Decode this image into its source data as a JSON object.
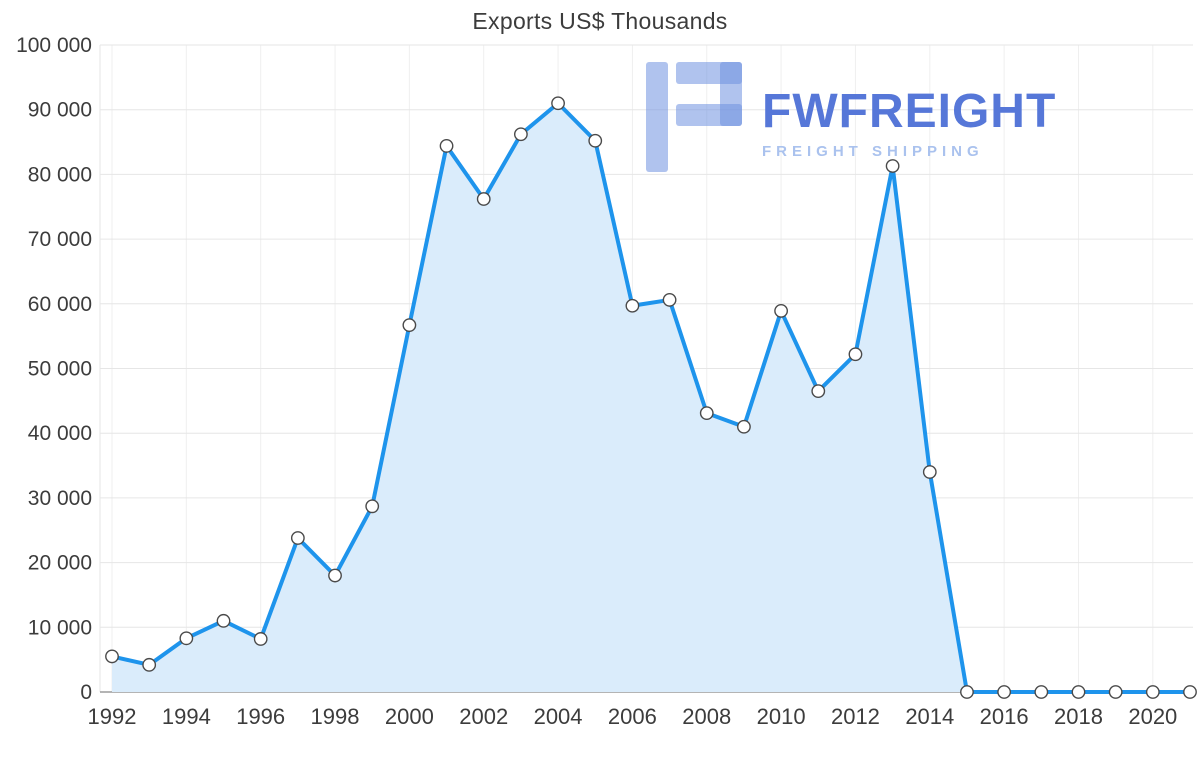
{
  "chart_data": {
    "type": "area",
    "title": "Exports US$ Thousands",
    "xlabel": "",
    "ylabel": "",
    "x": [
      1992,
      1993,
      1994,
      1995,
      1996,
      1997,
      1998,
      1999,
      2000,
      2001,
      2002,
      2003,
      2004,
      2005,
      2006,
      2007,
      2008,
      2009,
      2010,
      2011,
      2012,
      2013,
      2014,
      2015,
      2016,
      2017,
      2018,
      2019,
      2020,
      2021
    ],
    "values": [
      5500,
      4200,
      8300,
      11000,
      8200,
      23800,
      18000,
      28700,
      56700,
      84400,
      76200,
      86200,
      91000,
      85200,
      59700,
      60600,
      43100,
      41000,
      58900,
      46500,
      52200,
      81300,
      34000,
      0,
      0,
      0,
      0,
      0,
      0,
      0
    ],
    "ylim": [
      0,
      100000
    ],
    "y_ticks": {
      "values": [
        0,
        10000,
        20000,
        30000,
        40000,
        50000,
        60000,
        70000,
        80000,
        90000,
        100000
      ],
      "labels": [
        "0",
        "10 000",
        "20 000",
        "30 000",
        "40 000",
        "50 000",
        "60 000",
        "70 000",
        "80 000",
        "90 000",
        "100 000"
      ]
    },
    "x_ticks": {
      "values": [
        1992,
        1994,
        1996,
        1998,
        2000,
        2002,
        2004,
        2006,
        2008,
        2010,
        2012,
        2014,
        2016,
        2018,
        2020
      ],
      "labels": [
        "1992",
        "1994",
        "1996",
        "1998",
        "2000",
        "2002",
        "2004",
        "2006",
        "2008",
        "2010",
        "2012",
        "2014",
        "2016",
        "2018",
        "2020"
      ]
    },
    "grid": true,
    "legend": "none",
    "colors": {
      "line": "#1E94EC",
      "fill": "#DAECFB",
      "grid": "#E6E6E6",
      "grid_v": "#EFEFEF",
      "axis": "#9B9B9B",
      "text": "#3C3C3C",
      "marker_fill": "#FFFFFF",
      "marker_stroke": "#4A4A4A"
    }
  },
  "watermark": {
    "brand": "FWFREIGHT",
    "tagline": "FREIGHT SHIPPING",
    "colors": {
      "brand": "#5677D8",
      "tagline": "#AAC2EE",
      "mark": "#6F92E0"
    }
  }
}
